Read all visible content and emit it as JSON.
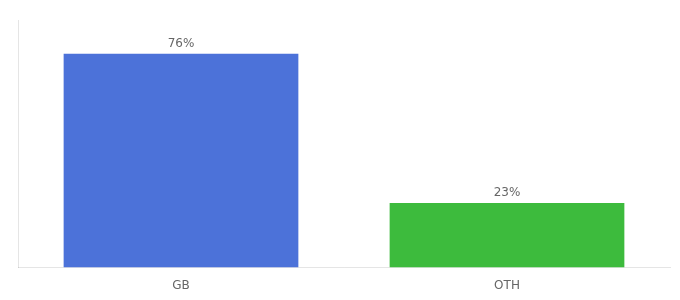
{
  "chart_data": {
    "type": "bar",
    "categories": [
      "GB",
      "OTH"
    ],
    "values": [
      76,
      23
    ],
    "colors": [
      "#4c72d9",
      "#3dbb3d"
    ],
    "ylim": [
      0,
      88
    ],
    "grid": false,
    "data_labels": true,
    "value_labels": [
      "76%",
      "23%"
    ],
    "tick_labels": "x"
  }
}
